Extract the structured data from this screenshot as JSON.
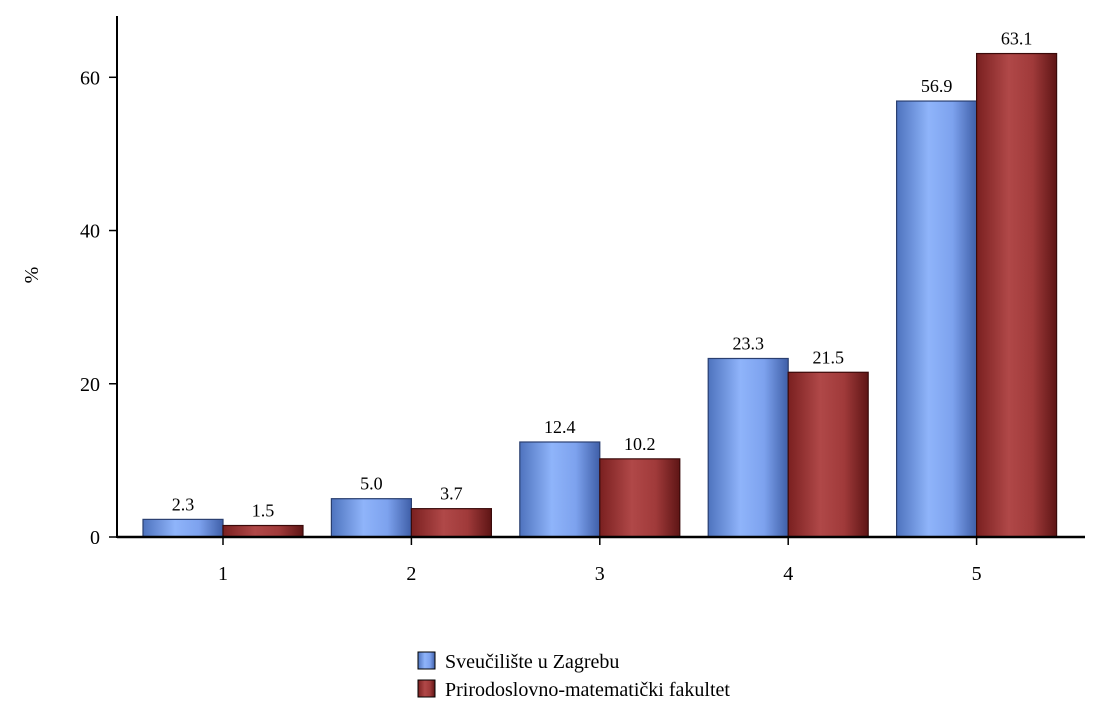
{
  "chart_data": {
    "type": "bar",
    "title": "",
    "xlabel": "",
    "ylabel": "%",
    "ylim": [
      0,
      68
    ],
    "yticks": [
      0,
      20,
      40,
      60
    ],
    "grid": false,
    "legend_position": "bottom-center",
    "categories": [
      "1",
      "2",
      "3",
      "4",
      "5"
    ],
    "series": [
      {
        "name": "Sveučilište u Zagrebu",
        "color": "#7BA3F2",
        "values": [
          2.3,
          5.0,
          12.4,
          23.3,
          56.9
        ],
        "labels": [
          "2.3",
          "5.0",
          "12.4",
          "23.3",
          "56.9"
        ]
      },
      {
        "name": "Prirodoslovno-matematički fakultet",
        "color": "#A33A3A",
        "values": [
          1.5,
          3.7,
          10.2,
          21.5,
          63.1
        ],
        "labels": [
          "1.5",
          "3.7",
          "10.2",
          "21.5",
          "63.1"
        ]
      }
    ]
  }
}
